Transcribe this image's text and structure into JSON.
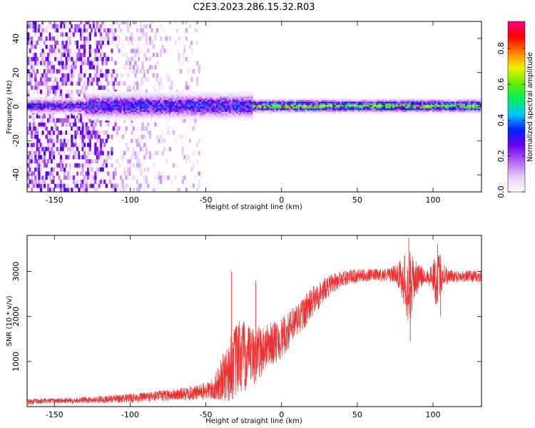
{
  "figure": {
    "title": "C2E3.2023.286.15.32.R03"
  },
  "chart_data": [
    {
      "type": "heatmap",
      "xlabel": "Height of straight line (km)",
      "ylabel": "Frequency (Hz)",
      "xlim": [
        -168,
        132
      ],
      "ylim": [
        -50,
        50
      ],
      "xticks": [
        -150,
        -100,
        -50,
        0,
        50,
        100
      ],
      "yticks": [
        -40,
        -20,
        0,
        20,
        40
      ],
      "colorbar": {
        "label": "Normalized spectral amplitude",
        "range": [
          0,
          0.95
        ],
        "ticks": [
          0.0,
          0.2,
          0.4,
          0.6,
          0.8
        ],
        "colormap": [
          "#ffffff",
          "#e8c8f8",
          "#b060f0",
          "#7000f0",
          "#0020ff",
          "#00c8ff",
          "#00f060",
          "#60f000",
          "#f0f000",
          "#ff8000",
          "#ff0000",
          "#ff0080"
        ]
      },
      "description_segments": [
        {
          "x_range": [
            -168,
            -60
          ],
          "spread_hz": 50,
          "peak_amplitude": 0.25
        },
        {
          "x_range": [
            -130,
            -20
          ],
          "spread_hz": 6,
          "peak_amplitude": 0.35
        },
        {
          "x_range": [
            -20,
            132
          ],
          "spread_hz": 2,
          "peak_amplitude": 0.8
        }
      ]
    },
    {
      "type": "line",
      "xlabel": "Height of straight line (km)",
      "ylabel": "SNR (10 * v/v)",
      "xlim": [
        -168,
        132
      ],
      "ylim": [
        0,
        3800
      ],
      "xticks": [
        -150,
        -100,
        -50,
        0,
        50,
        100
      ],
      "yticks": [
        1000,
        2000,
        3000
      ],
      "series_color": "#ee3030",
      "envelope": {
        "x": [
          -168,
          -150,
          -125,
          -100,
          -75,
          -55,
          -45,
          -35,
          -28,
          -20,
          -10,
          0,
          10,
          20,
          30,
          40,
          50,
          60,
          70,
          76,
          80,
          84,
          88,
          95,
          100,
          102,
          105,
          110,
          120,
          132
        ],
        "mean": [
          110,
          130,
          150,
          190,
          250,
          310,
          380,
          800,
          1100,
          1050,
          1350,
          1500,
          1900,
          2300,
          2650,
          2850,
          2900,
          2920,
          2930,
          2950,
          2850,
          2600,
          2850,
          2900,
          2900,
          2800,
          2950,
          2900,
          2900,
          2880
        ],
        "noise": [
          60,
          60,
          70,
          100,
          130,
          170,
          250,
          700,
          900,
          700,
          500,
          450,
          400,
          350,
          250,
          180,
          150,
          130,
          150,
          200,
          500,
          900,
          400,
          150,
          350,
          600,
          450,
          150,
          130,
          130
        ]
      },
      "spikes": [
        {
          "x": -33,
          "y": 3000
        },
        {
          "x": -17,
          "y": 2800
        },
        {
          "x": 84,
          "y": 3750
        },
        {
          "x": 85,
          "y": 1450
        },
        {
          "x": 103,
          "y": 3600
        },
        {
          "x": 105,
          "y": 2000
        }
      ]
    }
  ]
}
